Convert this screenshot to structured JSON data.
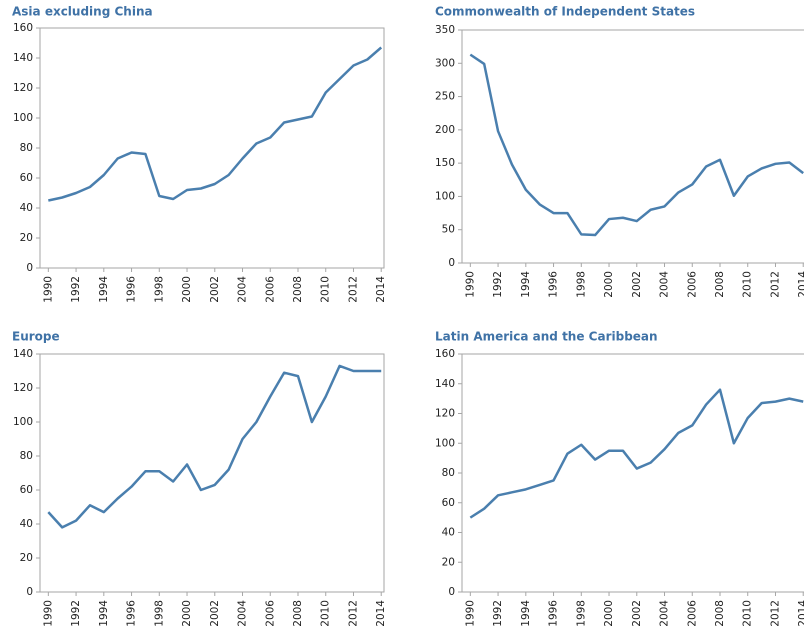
{
  "chart_data": [
    {
      "type": "line",
      "title": "Asia excluding China",
      "x": [
        1990,
        1991,
        1992,
        1993,
        1994,
        1995,
        1996,
        1997,
        1998,
        1999,
        2000,
        2001,
        2002,
        2003,
        2004,
        2005,
        2006,
        2007,
        2008,
        2009,
        2010,
        2011,
        2012,
        2013,
        2014
      ],
      "series": [
        {
          "color": "#4a7fae",
          "values": [
            45,
            47,
            50,
            54,
            62,
            73,
            77,
            76,
            48,
            46,
            52,
            53,
            56,
            62,
            73,
            83,
            87,
            97,
            99,
            101,
            117,
            126,
            135,
            139,
            147
          ]
        }
      ],
      "xlim": [
        1989.4,
        2014.2
      ],
      "xticks": [
        1990,
        1992,
        1994,
        1996,
        1998,
        2000,
        2002,
        2004,
        2006,
        2008,
        2010,
        2012,
        2014
      ],
      "ylim": [
        0,
        160
      ],
      "yticks": [
        0,
        20,
        40,
        60,
        80,
        100,
        120,
        140,
        160
      ],
      "grid": false
    },
    {
      "type": "line",
      "title": "Commonwealth of Independent States",
      "x": [
        1990,
        1991,
        1992,
        1993,
        1994,
        1995,
        1996,
        1997,
        1998,
        1999,
        2000,
        2001,
        2002,
        2003,
        2004,
        2005,
        2006,
        2007,
        2008,
        2009,
        2010,
        2011,
        2012,
        2013,
        2014
      ],
      "series": [
        {
          "color": "#4a7fae",
          "values": [
            313,
            299,
            198,
            148,
            110,
            88,
            75,
            75,
            43,
            42,
            66,
            68,
            63,
            80,
            85,
            106,
            118,
            145,
            155,
            101,
            130,
            142,
            149,
            151,
            135
          ]
        }
      ],
      "xlim": [
        1989.4,
        2014.2
      ],
      "xticks": [
        1990,
        1992,
        1994,
        1996,
        1998,
        2000,
        2002,
        2004,
        2006,
        2008,
        2010,
        2012,
        2014
      ],
      "ylim": [
        0,
        350
      ],
      "yticks": [
        0,
        50,
        100,
        150,
        200,
        250,
        300,
        350
      ],
      "grid": false
    },
    {
      "type": "line",
      "title": "Europe",
      "x": [
        1990,
        1991,
        1992,
        1993,
        1994,
        1995,
        1996,
        1997,
        1998,
        1999,
        2000,
        2001,
        2002,
        2003,
        2004,
        2005,
        2006,
        2007,
        2008,
        2009,
        2010,
        2011,
        2012,
        2013,
        2014
      ],
      "series": [
        {
          "color": "#4a7fae",
          "values": [
            47,
            38,
            42,
            51,
            47,
            55,
            62,
            71,
            71,
            65,
            75,
            60,
            63,
            72,
            90,
            100,
            115,
            129,
            127,
            100,
            115,
            133,
            130,
            130,
            130
          ]
        }
      ],
      "xlim": [
        1989.4,
        2014.2
      ],
      "xticks": [
        1990,
        1992,
        1994,
        1996,
        1998,
        2000,
        2002,
        2004,
        2006,
        2008,
        2010,
        2012,
        2014
      ],
      "ylim": [
        0,
        140
      ],
      "yticks": [
        0,
        20,
        40,
        60,
        80,
        100,
        120,
        140
      ],
      "grid": false
    },
    {
      "type": "line",
      "title": "Latin America and the Caribbean",
      "x": [
        1990,
        1991,
        1992,
        1993,
        1994,
        1995,
        1996,
        1997,
        1998,
        1999,
        2000,
        2001,
        2002,
        2003,
        2004,
        2005,
        2006,
        2007,
        2008,
        2009,
        2010,
        2011,
        2012,
        2013,
        2014
      ],
      "series": [
        {
          "color": "#4a7fae",
          "values": [
            50,
            56,
            65,
            67,
            69,
            72,
            75,
            93,
            99,
            89,
            95,
            95,
            83,
            87,
            96,
            107,
            112,
            126,
            136,
            100,
            117,
            127,
            128,
            130,
            128
          ]
        }
      ],
      "xlim": [
        1989.4,
        2014.2
      ],
      "xticks": [
        1990,
        1992,
        1994,
        1996,
        1998,
        2000,
        2002,
        2004,
        2006,
        2008,
        2010,
        2012,
        2014
      ],
      "ylim": [
        0,
        160
      ],
      "yticks": [
        0,
        20,
        40,
        60,
        80,
        100,
        120,
        140,
        160
      ],
      "grid": false
    }
  ]
}
